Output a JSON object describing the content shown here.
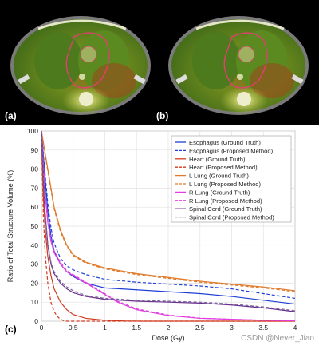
{
  "panels": {
    "a_label": "(a)",
    "b_label": "(b)",
    "c_label": "(c)"
  },
  "watermark": "CSDN @Never_Jiao",
  "chart_data": {
    "type": "line",
    "xlabel": "Dose (Gy)",
    "ylabel": "Ratio of Total Structure Volume (%)",
    "xlim": [
      0,
      4
    ],
    "ylim": [
      0,
      100
    ],
    "xticks": [
      0,
      0.5,
      1,
      1.5,
      2,
      2.5,
      3,
      3.5,
      4
    ],
    "yticks": [
      0,
      10,
      20,
      30,
      40,
      50,
      60,
      70,
      80,
      90,
      100
    ],
    "grid": true,
    "legend_position": "top-right",
    "series": [
      {
        "name": "Esophagus (Ground Truth)",
        "color": "#1f3fd6",
        "dash": "solid",
        "x": [
          0,
          0.05,
          0.1,
          0.15,
          0.2,
          0.3,
          0.4,
          0.5,
          0.7,
          1.0,
          1.5,
          2.0,
          2.5,
          3.0,
          3.5,
          4.0
        ],
        "y": [
          100,
          78,
          58,
          45,
          37,
          30,
          26,
          23.5,
          20,
          17.5,
          16.5,
          15.5,
          14.5,
          13,
          11,
          9
        ]
      },
      {
        "name": "Esophagus (Proposed Method)",
        "color": "#1f3fd6",
        "dash": "dashed",
        "x": [
          0,
          0.05,
          0.1,
          0.15,
          0.2,
          0.3,
          0.4,
          0.5,
          0.7,
          1.0,
          1.5,
          2.0,
          2.5,
          3.0,
          3.5,
          4.0
        ],
        "y": [
          100,
          80,
          62,
          49,
          41,
          33,
          29,
          27,
          24.5,
          22,
          20.5,
          19.5,
          18.5,
          17,
          14.5,
          12
        ]
      },
      {
        "name": "Heart (Ground Truth)",
        "color": "#d23a1e",
        "dash": "solid",
        "x": [
          0,
          0.03,
          0.06,
          0.1,
          0.15,
          0.2,
          0.3,
          0.4,
          0.5,
          0.7,
          1.0,
          1.3,
          1.6,
          2.0,
          4.0
        ],
        "y": [
          100,
          65,
          48,
          34,
          24,
          17,
          10,
          6,
          3.5,
          1.5,
          0.5,
          0.1,
          0,
          0,
          0
        ]
      },
      {
        "name": "Heart (Proposed Method)",
        "color": "#d23a1e",
        "dash": "dashed",
        "x": [
          0,
          0.03,
          0.06,
          0.1,
          0.15,
          0.2,
          0.25,
          0.3,
          0.35,
          0.4,
          0.5,
          1.0,
          4.0
        ],
        "y": [
          100,
          55,
          35,
          20,
          10,
          5,
          2.5,
          1,
          0.3,
          0,
          0,
          0,
          0
        ]
      },
      {
        "name": "L Lung (Ground Truth)",
        "color": "#e07a2a",
        "dash": "solid",
        "x": [
          0,
          0.05,
          0.1,
          0.15,
          0.2,
          0.3,
          0.4,
          0.5,
          0.7,
          1.0,
          1.5,
          2.0,
          2.5,
          3.0,
          3.5,
          4.0
        ],
        "y": [
          100,
          90,
          80,
          70,
          60,
          48,
          40,
          35,
          31,
          28,
          25,
          23,
          21,
          19.5,
          18,
          16
        ]
      },
      {
        "name": "L Lung (Proposed Method)",
        "color": "#e07a2a",
        "dash": "dashed",
        "x": [
          0,
          0.05,
          0.1,
          0.15,
          0.2,
          0.3,
          0.4,
          0.5,
          0.7,
          1.0,
          1.5,
          2.0,
          2.5,
          3.0,
          3.5,
          4.0
        ],
        "y": [
          100,
          89,
          79,
          69,
          59,
          47,
          39.5,
          34.5,
          30.5,
          27.5,
          24.5,
          22.5,
          20.5,
          19,
          17.5,
          15.5
        ]
      },
      {
        "name": "R Lung (Ground Truth)",
        "color": "#e040e0",
        "dash": "solid",
        "x": [
          0,
          0.05,
          0.1,
          0.15,
          0.2,
          0.3,
          0.4,
          0.5,
          0.6,
          0.8,
          1.0,
          1.2,
          1.5,
          2.0,
          2.5,
          3.0,
          3.5,
          4.0
        ],
        "y": [
          100,
          70,
          52,
          42,
          36,
          30,
          26,
          24,
          22,
          18,
          14,
          10,
          6,
          3,
          1.5,
          1,
          0.5,
          0.2
        ]
      },
      {
        "name": "R Lung (Proposed Method)",
        "color": "#e040e0",
        "dash": "dashed",
        "x": [
          0,
          0.05,
          0.1,
          0.15,
          0.2,
          0.3,
          0.4,
          0.5,
          0.6,
          0.8,
          1.0,
          1.2,
          1.5,
          2.0,
          2.5,
          3.0,
          3.5,
          4.0
        ],
        "y": [
          100,
          71,
          53,
          43,
          37,
          31,
          26.5,
          24.5,
          22.5,
          18.5,
          14.5,
          10.5,
          6.5,
          3.2,
          1.6,
          1,
          0.5,
          0.2
        ]
      },
      {
        "name": "Spinal Cord (Ground Truth)",
        "color": "#6a2f8f",
        "dash": "solid",
        "x": [
          0,
          0.05,
          0.1,
          0.15,
          0.2,
          0.3,
          0.4,
          0.5,
          0.7,
          1.0,
          1.5,
          2.0,
          2.5,
          3.0,
          3.5,
          4.0
        ],
        "y": [
          100,
          60,
          40,
          30,
          25,
          20,
          17,
          15,
          13,
          11.5,
          10.5,
          10,
          9.5,
          8.5,
          7,
          5
        ]
      },
      {
        "name": "Spinal Cord (Proposed Method)",
        "color": "#7a6a9a",
        "dash": "dashed",
        "x": [
          0,
          0.05,
          0.1,
          0.15,
          0.2,
          0.3,
          0.4,
          0.5,
          0.7,
          1.0,
          1.5,
          2.0,
          2.5,
          3.0,
          3.5,
          4.0
        ],
        "y": [
          100,
          61,
          41,
          31,
          26,
          21,
          18,
          16,
          13.5,
          12,
          11,
          10.5,
          10,
          9,
          7.5,
          5.5
        ]
      }
    ]
  }
}
